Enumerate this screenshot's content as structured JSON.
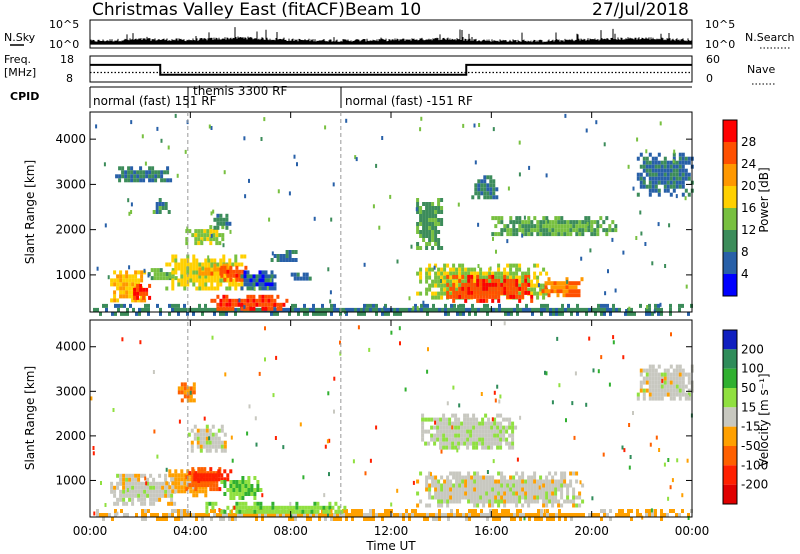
{
  "header": {
    "station": "Christmas Valley East (fitACF)",
    "beam": "Beam 10",
    "date": "27/Jul/2018"
  },
  "side_labels": {
    "nsky": "N.Sky",
    "nsearch": "N.Search",
    "freq": "Freq.",
    "freq_unit": "[MHz]",
    "nave": "Nave",
    "cpid": "CPID"
  },
  "noise_axis": {
    "left_ticks": [
      "10^5",
      "10^0"
    ],
    "right_ticks": [
      "10^5",
      "10^0"
    ]
  },
  "freq_axis": {
    "left_ticks": [
      "18",
      "8"
    ],
    "right_ticks": [
      "60",
      "0"
    ]
  },
  "cpid_segments": [
    {
      "label": "normal (fast) 151 RF",
      "start_h": 0.0,
      "end_h": 3.9
    },
    {
      "label": "themis 3300 RF",
      "start_h": 3.9,
      "end_h": 10.0
    },
    {
      "label": "normal (fast) -151 RF",
      "start_h": 10.0,
      "end_h": 24.0
    }
  ],
  "power_panel": {
    "ylabel": "Slant Range [km]",
    "cbar_label": "Power [dB]",
    "cbar_ticks": [
      "28",
      "24",
      "20",
      "16",
      "12",
      "8",
      "4"
    ],
    "cbar_colors": [
      "#ff0000",
      "#ff5000",
      "#ff9800",
      "#ffd000",
      "#78c040",
      "#3c8c5a",
      "#2860a8",
      "#0000ff"
    ]
  },
  "velocity_panel": {
    "ylabel": "Slant Range [km]",
    "cbar_label": "Velocity [m s⁻¹]",
    "cbar_ticks": [
      "200",
      "100",
      "50",
      "15",
      "-15",
      "-50",
      "-100",
      "-200"
    ],
    "cbar_colors": [
      "#1020c0",
      "#2f8c5a",
      "#30b030",
      "#90e040",
      "#c8c8c0",
      "#ffa000",
      "#ff6000",
      "#ff2000",
      "#e00000"
    ]
  },
  "range_ticks": [
    "4000",
    "3000",
    "2000",
    "1000"
  ],
  "time_ticks": [
    "00:00",
    "04:00",
    "08:00",
    "12:00",
    "16:00",
    "20:00",
    "00:00"
  ],
  "xlabel": "Time UT",
  "chart_data": [
    {
      "type": "line",
      "name": "noise",
      "x": [
        0,
        2,
        4,
        6,
        8,
        10,
        12,
        14,
        16,
        18,
        20,
        22,
        24
      ],
      "sky_noise_log10": [
        1.0,
        1.3,
        1.2,
        1.6,
        1.2,
        1.1,
        1.2,
        1.4,
        1.1,
        1.0,
        1.3,
        1.5,
        1.2
      ],
      "ylim": [
        0,
        5
      ]
    },
    {
      "type": "line",
      "name": "frequency",
      "x": [
        0,
        2.8,
        2.8,
        15.0,
        15.0,
        24
      ],
      "freq_mhz": [
        14.6,
        14.6,
        10.8,
        10.8,
        14.6,
        14.6
      ],
      "ylim": [
        8,
        18
      ],
      "nave": 22,
      "nave_ylim": [
        0,
        60
      ]
    },
    {
      "type": "heatmap",
      "name": "power",
      "xlim": [
        0,
        24
      ],
      "ylim": [
        180,
        4600
      ],
      "units": "dB",
      "clim": [
        0,
        30
      ],
      "regions": [
        {
          "t": [
            0.0,
            24.0
          ],
          "r": [
            180,
            360
          ],
          "v": 9
        },
        {
          "t": [
            0.8,
            2.2
          ],
          "r": [
            480,
            1100
          ],
          "v": 19
        },
        {
          "t": [
            1.6,
            2.4
          ],
          "r": [
            500,
            800
          ],
          "v": 28
        },
        {
          "t": [
            2.3,
            3.4
          ],
          "r": [
            900,
            1150
          ],
          "v": 13
        },
        {
          "t": [
            3.0,
            6.2
          ],
          "r": [
            700,
            1450
          ],
          "v": 17
        },
        {
          "t": [
            4.2,
            5.6
          ],
          "r": [
            1000,
            1250
          ],
          "v": 22
        },
        {
          "t": [
            5.2,
            6.2
          ],
          "r": [
            900,
            1200
          ],
          "v": 26
        },
        {
          "t": [
            4.8,
            7.8
          ],
          "r": [
            250,
            560
          ],
          "v": 27
        },
        {
          "t": [
            6.0,
            7.4
          ],
          "r": [
            700,
            1100
          ],
          "v": 6
        },
        {
          "t": [
            7.2,
            8.2
          ],
          "r": [
            1300,
            1550
          ],
          "v": 7
        },
        {
          "t": [
            8.0,
            8.8
          ],
          "r": [
            900,
            1050
          ],
          "v": 6
        },
        {
          "t": [
            3.8,
            5.3
          ],
          "r": [
            1700,
            2100
          ],
          "v": 15
        },
        {
          "t": [
            4.8,
            5.6
          ],
          "r": [
            2050,
            2350
          ],
          "v": 9
        },
        {
          "t": [
            2.5,
            3.2
          ],
          "r": [
            2400,
            2700
          ],
          "v": 10
        },
        {
          "t": [
            1.0,
            3.2
          ],
          "r": [
            3100,
            3400
          ],
          "v": 8
        },
        {
          "t": [
            13.0,
            18.2
          ],
          "r": [
            500,
            1250
          ],
          "v": 15
        },
        {
          "t": [
            14.2,
            17.6
          ],
          "r": [
            450,
            1000
          ],
          "v": 27
        },
        {
          "t": [
            18.0,
            19.6
          ],
          "r": [
            550,
            950
          ],
          "v": 24
        },
        {
          "t": [
            13.0,
            14.0
          ],
          "r": [
            1600,
            2700
          ],
          "v": 11
        },
        {
          "t": [
            15.2,
            16.2
          ],
          "r": [
            2700,
            3200
          ],
          "v": 9
        },
        {
          "t": [
            16.0,
            21.0
          ],
          "r": [
            1900,
            2300
          ],
          "v": 12
        },
        {
          "t": [
            21.8,
            24.0
          ],
          "r": [
            2800,
            3700
          ],
          "v": 8
        }
      ]
    },
    {
      "type": "heatmap",
      "name": "velocity",
      "xlim": [
        0,
        24
      ],
      "ylim": [
        180,
        4600
      ],
      "units": "m s-1",
      "clim": [
        -250,
        250
      ],
      "regions": [
        {
          "t": [
            0.0,
            24.0
          ],
          "r": [
            180,
            360
          ],
          "v": -22
        },
        {
          "t": [
            0.8,
            3.4
          ],
          "r": [
            500,
            1150
          ],
          "v": 0
        },
        {
          "t": [
            3.0,
            4.8
          ],
          "r": [
            700,
            1250
          ],
          "v": -30
        },
        {
          "t": [
            3.8,
            5.2
          ],
          "r": [
            850,
            1300
          ],
          "v": -90
        },
        {
          "t": [
            4.0,
            5.6
          ],
          "r": [
            1000,
            1250
          ],
          "v": -130
        },
        {
          "t": [
            5.2,
            6.8
          ],
          "r": [
            600,
            1100
          ],
          "v": 55
        },
        {
          "t": [
            4.6,
            10.2
          ],
          "r": [
            280,
            520
          ],
          "v": 35
        },
        {
          "t": [
            3.9,
            5.4
          ],
          "r": [
            1700,
            2250
          ],
          "v": 0
        },
        {
          "t": [
            3.5,
            4.2
          ],
          "r": [
            2800,
            3200
          ],
          "v": -45
        },
        {
          "t": [
            13.0,
            19.6
          ],
          "r": [
            450,
            1200
          ],
          "v": 0
        },
        {
          "t": [
            13.2,
            17.0
          ],
          "r": [
            1700,
            2500
          ],
          "v": 5
        },
        {
          "t": [
            21.8,
            24.0
          ],
          "r": [
            2800,
            3600
          ],
          "v": 0
        }
      ]
    }
  ]
}
